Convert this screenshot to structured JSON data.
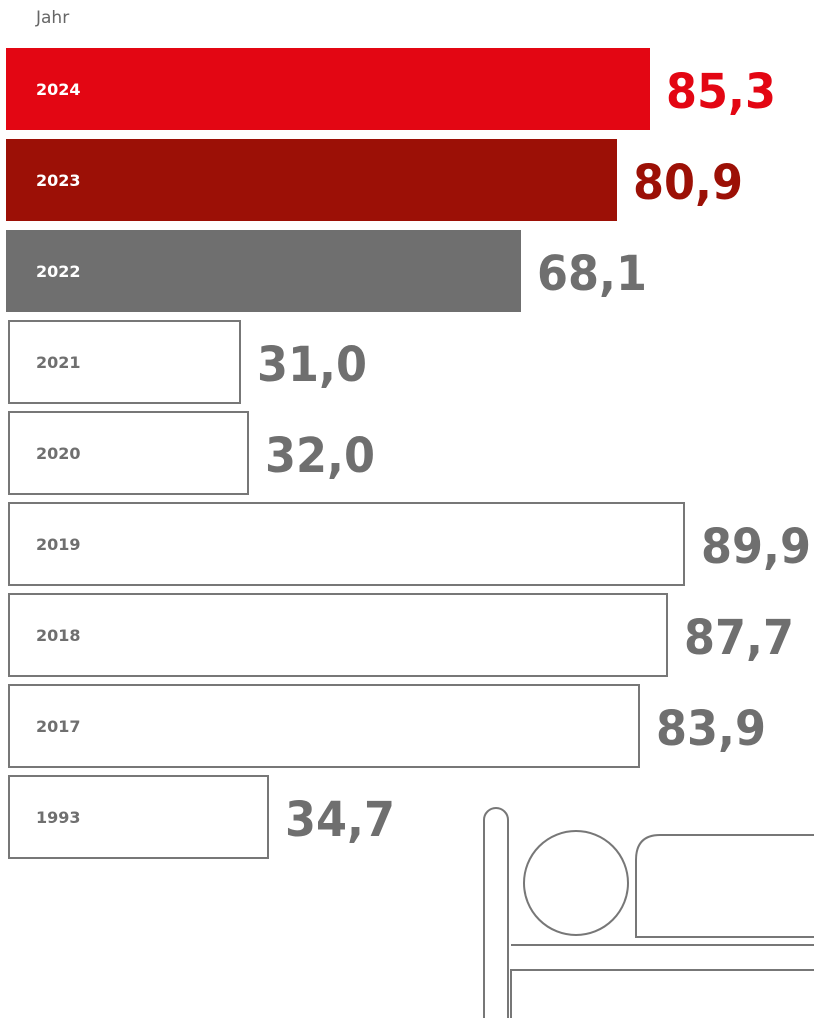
{
  "colors": {
    "accent": "#e30613",
    "dark_red": "#9c1006",
    "gray": "#6f6f6f",
    "outline": "#777777",
    "text_gray": "#6f6f6f",
    "white": "#ffffff"
  },
  "illustration": {
    "icon": "bed-icon"
  },
  "chart_data": {
    "type": "bar",
    "orientation": "horizontal",
    "xlabel": "",
    "ylabel": "Jahr",
    "categories": [
      "2024",
      "2023",
      "2022",
      "2021",
      "2020",
      "2019",
      "2018",
      "2017",
      "1993"
    ],
    "values": [
      85.3,
      80.9,
      68.1,
      31.0,
      32.0,
      89.9,
      87.7,
      83.9,
      34.7
    ],
    "value_labels": [
      "85,3",
      "80,9",
      "68,1",
      "31,0",
      "32,0",
      "89,9",
      "87,7",
      "83,9",
      "34,7"
    ],
    "styles": [
      "accent",
      "dark_red",
      "gray",
      "outline",
      "outline",
      "outline",
      "outline",
      "outline",
      "outline"
    ],
    "xlim": [
      0,
      89.9
    ],
    "grid": false,
    "legend": "none"
  }
}
